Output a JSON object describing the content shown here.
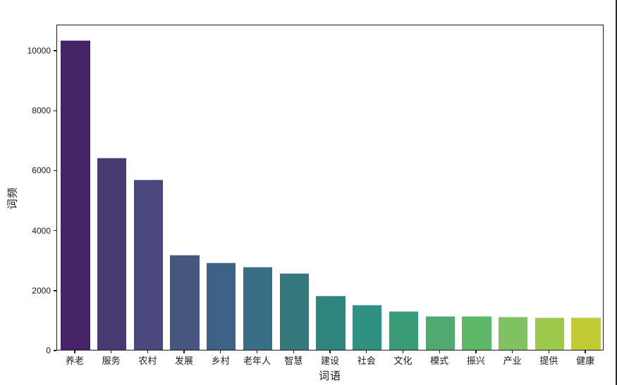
{
  "figure": {
    "background": "#ffffff",
    "spine_color": "#1c1c1c",
    "text_color": "#1a1a1a",
    "right_edge_border_color": "#2b2b2b"
  },
  "chart_data": {
    "type": "bar",
    "title": "",
    "xlabel": "词语",
    "ylabel": "词频",
    "categories": [
      "养老",
      "服务",
      "农村",
      "发展",
      "乡村",
      "老年人",
      "智慧",
      "建设",
      "社会",
      "文化",
      "模式",
      "振兴",
      "产业",
      "提供",
      "健康"
    ],
    "values": [
      10330,
      6410,
      5680,
      3180,
      2900,
      2770,
      2570,
      1810,
      1500,
      1300,
      1130,
      1130,
      1100,
      1070,
      1080
    ],
    "bar_colors": [
      "#462366",
      "#473a72",
      "#4a487c",
      "#45567f",
      "#3e6285",
      "#396f86",
      "#35797f",
      "#2f857d",
      "#2e9181",
      "#3a9c77",
      "#50a96f",
      "#5db967",
      "#80c162",
      "#9cc94c",
      "#c1cc34"
    ],
    "palette": "viridis",
    "yticks": [
      0,
      2000,
      4000,
      6000,
      8000,
      10000
    ],
    "ylim": [
      0,
      10870
    ],
    "grid": false,
    "legend": "none",
    "bar_rel_width": 0.8
  }
}
